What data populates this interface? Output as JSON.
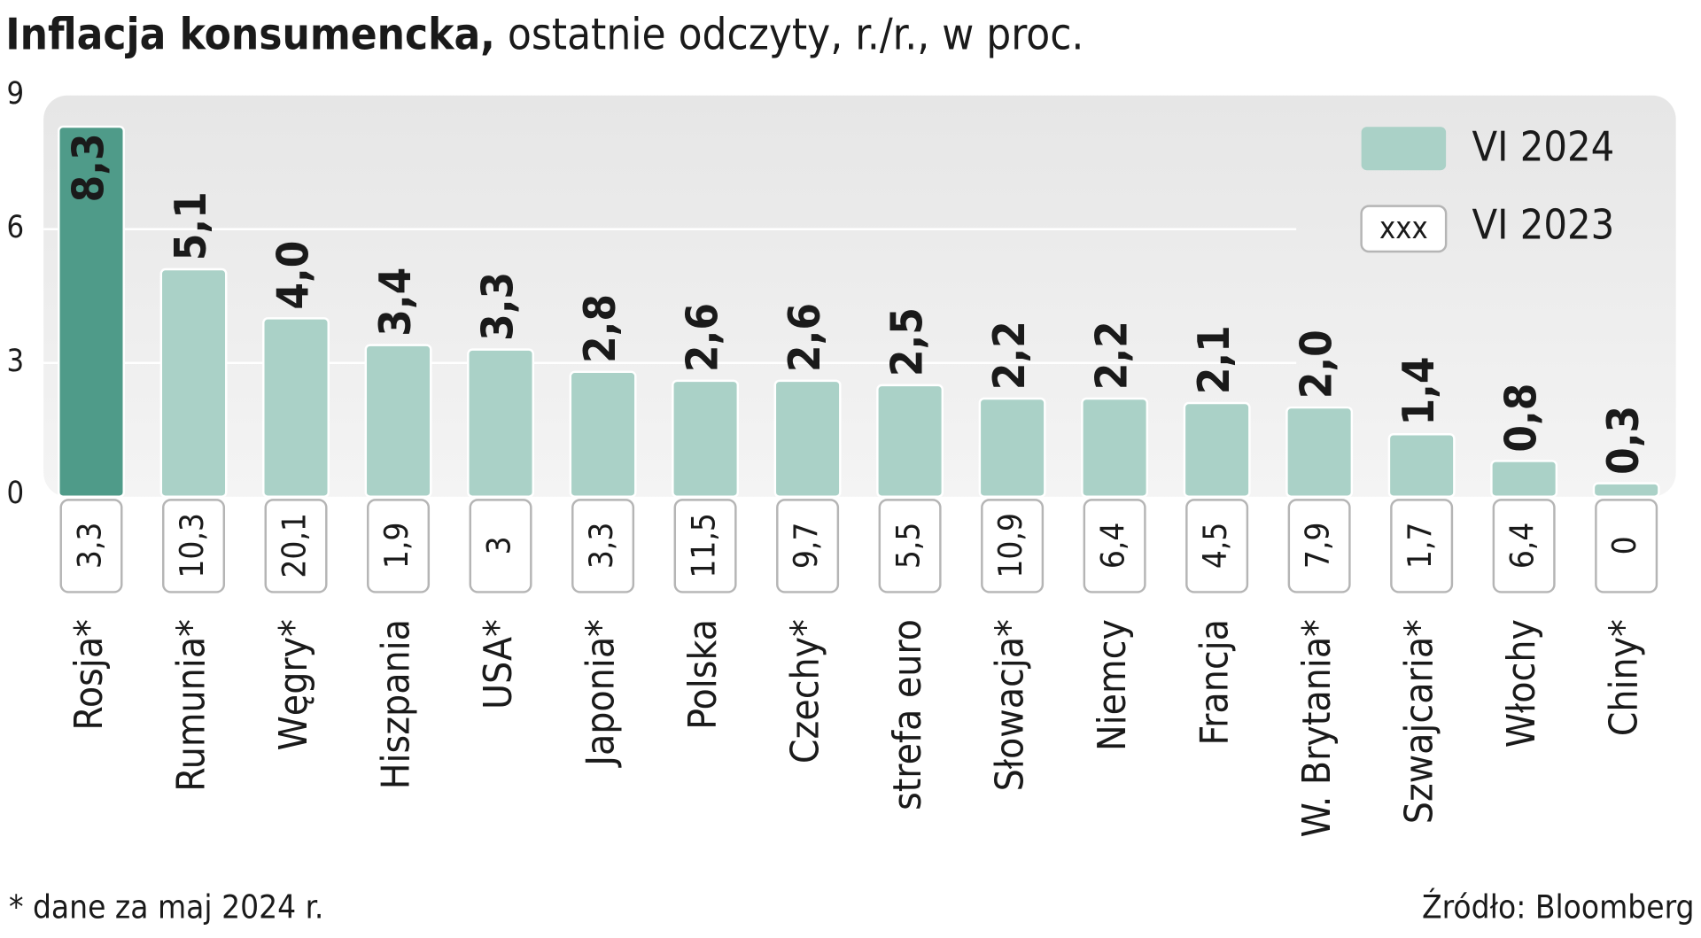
{
  "chart_data": {
    "type": "bar",
    "title": "Inflacja konsumencka,",
    "subtitle": "ostatnie odczyty, r./r., w proc.",
    "categories": [
      "Rosja*",
      "Rumunia*",
      "Węgry*",
      "Hiszpania",
      "USA*",
      "Japonia*",
      "Polska",
      "Czechy*",
      "strefa euro",
      "Słowacja*",
      "Niemcy",
      "Francja",
      "W. Brytania*",
      "Szwajcaria*",
      "Włochy",
      "Chiny*"
    ],
    "series": [
      {
        "name": "VI 2024",
        "color": "#aad1c7",
        "colors": [
          "#4f9b89",
          "#aad1c7",
          "#aad1c7",
          "#aad1c7",
          "#aad1c7",
          "#aad1c7",
          "#aad1c7",
          "#aad1c7",
          "#aad1c7",
          "#aad1c7",
          "#aad1c7",
          "#aad1c7",
          "#aad1c7",
          "#aad1c7",
          "#aad1c7",
          "#aad1c7"
        ],
        "values": [
          8.3,
          5.1,
          4.0,
          3.4,
          3.3,
          2.8,
          2.6,
          2.6,
          2.5,
          2.2,
          2.2,
          2.1,
          2.0,
          1.4,
          0.8,
          0.3
        ],
        "value_labels": [
          "8,3",
          "5,1",
          "4,0",
          "3,4",
          "3,3",
          "2,8",
          "2,6",
          "2,6",
          "2,5",
          "2,2",
          "2,2",
          "2,1",
          "2,0",
          "1,4",
          "0,8",
          "0,3"
        ]
      },
      {
        "name": "VI 2023",
        "color": "#ffffff",
        "values": [
          3.3,
          10.3,
          20.1,
          1.9,
          3,
          3.3,
          11.5,
          9.7,
          5.5,
          10.9,
          6.4,
          4.5,
          7.9,
          1.7,
          6.4,
          0
        ],
        "value_labels": [
          "3,3",
          "10,3",
          "20,1",
          "1,9",
          "3",
          "3,3",
          "11,5",
          "9,7",
          "5,5",
          "10,9",
          "6,4",
          "4,5",
          "7,9",
          "1,7",
          "6,4",
          "0"
        ]
      }
    ],
    "legend_sample": "xxx",
    "ylim": [
      0,
      9
    ],
    "yticks": [
      0,
      3,
      6,
      9
    ],
    "grid": true,
    "legend": "top-right",
    "footnote": "* dane za maj 2024 r.",
    "source": "Źródło: Bloomberg"
  }
}
